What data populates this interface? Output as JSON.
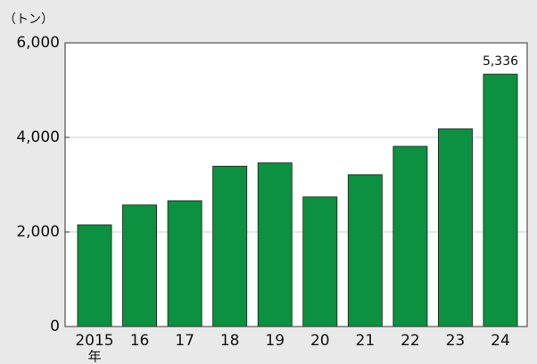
{
  "chart_data": {
    "type": "bar",
    "y_unit_label": "（トン）",
    "x_annotation": "年",
    "categories": [
      "2015",
      "16",
      "17",
      "18",
      "19",
      "20",
      "21",
      "22",
      "23",
      "24"
    ],
    "values": [
      2150,
      2570,
      2660,
      3390,
      3460,
      2740,
      3210,
      3810,
      4180,
      5336
    ],
    "value_labels": [
      null,
      null,
      null,
      null,
      null,
      null,
      null,
      null,
      null,
      "5,336"
    ],
    "color": "#0b9140",
    "ylim": [
      0,
      6000
    ],
    "yticks": [
      0,
      {
        "value": 2000,
        "label": "2,000"
      },
      {
        "value": 4000,
        "label": "4,000"
      },
      {
        "value": 6000,
        "label": "6,000"
      }
    ],
    "grid": true
  }
}
